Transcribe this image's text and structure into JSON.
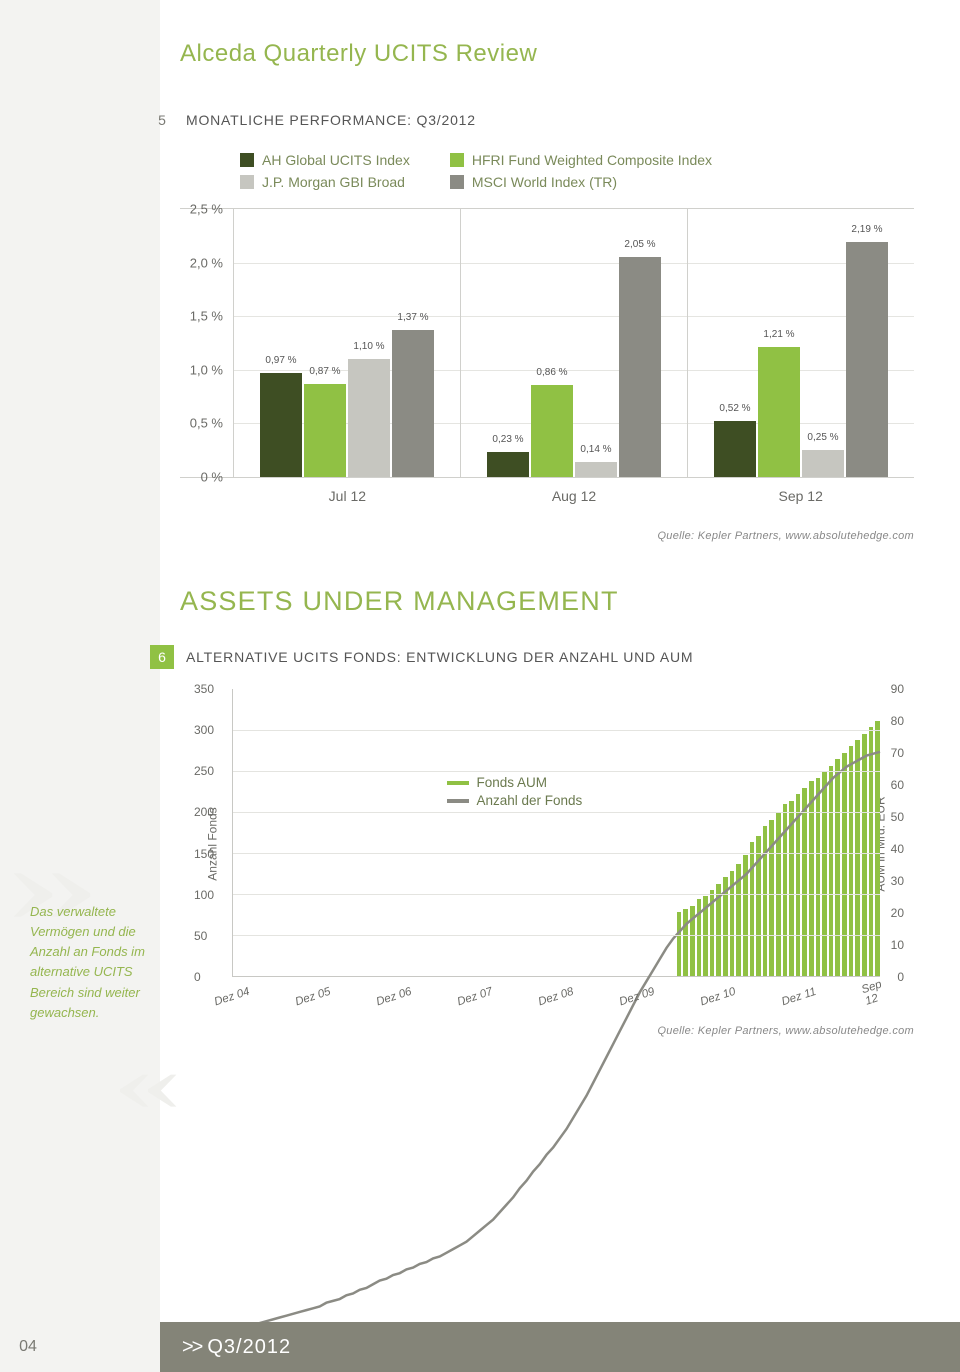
{
  "page_title_color": "#95b64f",
  "page": {
    "title": "Alceda Quarterly UCITS Review",
    "number": "04",
    "footer_period": "Q3/2012",
    "footer_bg": "#848478"
  },
  "section5": {
    "number": "5",
    "title": "MONATLICHE PERFORMANCE: Q3/2012",
    "legend": [
      {
        "label": "AH Global UCITS Index",
        "color": "#3e4e23"
      },
      {
        "label": "J.P. Morgan GBI Broad",
        "color": "#c6c6c0"
      },
      {
        "label": "HFRI Fund Weighted Composite Index",
        "color": "#90c144"
      },
      {
        "label": "MSCI World Index (TR)",
        "color": "#8b8b84"
      }
    ],
    "yticks": [
      "2,5 %",
      "2,0 %",
      "1,5 %",
      "1,0 %",
      "0,5 %",
      "0 %"
    ],
    "ymax": 2.5,
    "months": [
      {
        "label": "Jul 12",
        "bars": [
          {
            "value": 0.97,
            "label": "0,97 %",
            "color": "#3e4e23"
          },
          {
            "value": 0.87,
            "label": "0,87 %",
            "color": "#90c144"
          },
          {
            "value": 1.1,
            "label": "1,10 %",
            "color": "#c6c6c0"
          },
          {
            "value": 1.37,
            "label": "1,37 %",
            "color": "#8b8b84"
          }
        ]
      },
      {
        "label": "Aug 12",
        "bars": [
          {
            "value": 0.23,
            "label": "0,23 %",
            "color": "#3e4e23"
          },
          {
            "value": 0.86,
            "label": "0,86 %",
            "color": "#90c144"
          },
          {
            "value": 0.14,
            "label": "0,14 %",
            "color": "#c6c6c0"
          },
          {
            "value": 2.05,
            "label": "2,05 %",
            "color": "#8b8b84"
          }
        ]
      },
      {
        "label": "Sep 12",
        "bars": [
          {
            "value": 0.52,
            "label": "0,52 %",
            "color": "#3e4e23"
          },
          {
            "value": 1.21,
            "label": "1,21 %",
            "color": "#90c144"
          },
          {
            "value": 0.25,
            "label": "0,25 %",
            "color": "#c6c6c0"
          },
          {
            "value": 2.19,
            "label": "2,19 %",
            "color": "#8b8b84"
          }
        ]
      }
    ],
    "source": "Quelle: Kepler Partners, www.absolutehedge.com"
  },
  "assets_title": "ASSETS UNDER MANAGEMENT",
  "section6": {
    "number": "6",
    "number_bg": "#90c144",
    "number_color": "#ffffff",
    "title": "ALTERNATIVE UCITS FONDS: ENTWICKLUNG DER ANZAHL UND AUM",
    "y_left": {
      "label": "Anzahl Fonds",
      "max": 350,
      "ticks": [
        0,
        50,
        100,
        150,
        200,
        250,
        300,
        350
      ]
    },
    "y_right": {
      "label": "AUM in Mrd. EUR",
      "max": 90,
      "ticks": [
        0,
        10,
        20,
        30,
        40,
        50,
        60,
        70,
        80,
        90
      ]
    },
    "x_labels": [
      "Dez 04",
      "Dez 05",
      "Dez 06",
      "Dez 07",
      "Dez 08",
      "Dez 09",
      "Dez 10",
      "Dez 11",
      "Sep 12"
    ],
    "legend": [
      {
        "label": "Fonds AUM",
        "color": "#90c144"
      },
      {
        "label": "Anzahl der Fonds",
        "color": "#8b8b84"
      }
    ],
    "bar_color": "#90c144",
    "line_color": "#8b8b84",
    "aum_bars": [
      0,
      0,
      0,
      0,
      0,
      0,
      0,
      0,
      0,
      0,
      0,
      0,
      0,
      0,
      0,
      0,
      0,
      0,
      0,
      0,
      0,
      0,
      0,
      0,
      0,
      0,
      0,
      0,
      0,
      0,
      0,
      0,
      0,
      0,
      0,
      0,
      0,
      0,
      0,
      0,
      0,
      0,
      0,
      0,
      0,
      0,
      0,
      0,
      0,
      0,
      0,
      0,
      0,
      0,
      0,
      0,
      0,
      0,
      0,
      0,
      0,
      0,
      0,
      0,
      0,
      0,
      0,
      20,
      21,
      22,
      24,
      25,
      27,
      29,
      31,
      33,
      35,
      38,
      42,
      44,
      47,
      49,
      51,
      54,
      55,
      57,
      59,
      61,
      62,
      64,
      66,
      68,
      70,
      72,
      74,
      76,
      78,
      80
    ],
    "fund_count_line": [
      3,
      4,
      5,
      6,
      7,
      8,
      9,
      10,
      11,
      12,
      13,
      14,
      15,
      16,
      18,
      19,
      20,
      22,
      23,
      25,
      26,
      28,
      30,
      31,
      33,
      34,
      36,
      37,
      39,
      40,
      42,
      43,
      45,
      47,
      49,
      51,
      54,
      57,
      60,
      63,
      67,
      71,
      75,
      80,
      84,
      89,
      93,
      98,
      102,
      107,
      112,
      118,
      124,
      130,
      137,
      144,
      151,
      158,
      165,
      172,
      179,
      186,
      192,
      198,
      204,
      210,
      215,
      219,
      223,
      226,
      229,
      232,
      235,
      238,
      241,
      244,
      247,
      250,
      254,
      258,
      262,
      266,
      270,
      274,
      278,
      282,
      286,
      290,
      294,
      298,
      302,
      305,
      308,
      310,
      312,
      314,
      315,
      316
    ],
    "source": "Quelle: Kepler Partners, www.absolutehedge.com"
  },
  "sidebar_quote": "Das verwaltete Vermögen und die Anzahl an Fonds im alternative UCITS Bereich sind weiter gewachsen."
}
